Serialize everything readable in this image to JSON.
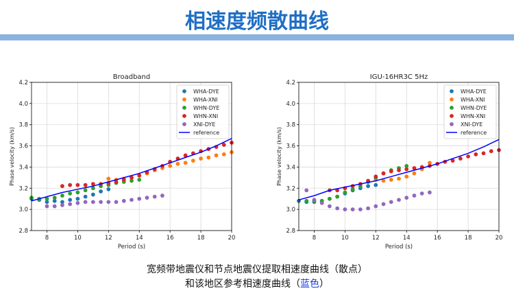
{
  "slide": {
    "title": "相速度频散曲线",
    "caption_line1": "宽频带地震仪和节点地震仪提取相速度曲线（散点）",
    "caption_line2_pre": "和该地区参考相速度曲线（",
    "caption_line2_hl": "蓝色",
    "caption_line2_post": "）"
  },
  "colors": {
    "title": "#1f6fc5",
    "banner": "#8cb3e0",
    "WHA-DYE": "#1f77b4",
    "WHA-XNI": "#ff7f0e",
    "WHN-DYE": "#2ca02c",
    "WHN-XNI": "#d62728",
    "XNI-DYE": "#9467bd",
    "reference": "#0000ff"
  },
  "chart_data": [
    {
      "type": "scatter",
      "title": "Broadband",
      "xlabel": "Period (s)",
      "ylabel": "Phase velocity (km/s)",
      "xlim": [
        7,
        20
      ],
      "ylim": [
        2.8,
        4.2
      ],
      "xticks": [
        8,
        10,
        12,
        14,
        16,
        18,
        20
      ],
      "yticks": [
        2.8,
        3.0,
        3.2,
        3.4,
        3.6,
        3.8,
        4.0,
        4.2
      ],
      "grid": true,
      "legend": "top-right",
      "series": [
        {
          "name": "WHA-DYE",
          "x": [
            7.0,
            7.5,
            8.0,
            8.5,
            9.0,
            9.5,
            10.0,
            10.5,
            11.0,
            11.5,
            12.0
          ],
          "y": [
            3.1,
            3.09,
            3.07,
            3.08,
            3.07,
            3.09,
            3.1,
            3.12,
            3.14,
            3.17,
            3.19
          ]
        },
        {
          "name": "WHA-XNI",
          "x": [
            12.0,
            12.5,
            13.0,
            13.5,
            14.0,
            14.5,
            15.0,
            15.5,
            16.0,
            16.5,
            17.0,
            17.5,
            18.0,
            18.5,
            19.0,
            19.5,
            20.0
          ],
          "y": [
            3.29,
            3.28,
            3.29,
            3.3,
            3.32,
            3.34,
            3.37,
            3.39,
            3.41,
            3.43,
            3.44,
            3.46,
            3.48,
            3.49,
            3.51,
            3.52,
            3.54
          ]
        },
        {
          "name": "WHN-DYE",
          "x": [
            7.0,
            7.5,
            8.0,
            8.5,
            9.0,
            9.5,
            10.0,
            10.5,
            11.0,
            11.5,
            12.0,
            12.5,
            13.0,
            13.5,
            14.0
          ],
          "y": [
            3.11,
            3.1,
            3.1,
            3.11,
            3.13,
            3.15,
            3.16,
            3.18,
            3.2,
            3.22,
            3.23,
            3.25,
            3.26,
            3.27,
            3.28
          ]
        },
        {
          "name": "WHN-XNI",
          "x": [
            9.0,
            9.5,
            10.0,
            10.5,
            11.0,
            11.5,
            12.0,
            12.5,
            13.0,
            13.5,
            14.0,
            14.5,
            15.0,
            15.5,
            16.0,
            16.5,
            17.0,
            17.5,
            18.0,
            18.5,
            19.0,
            19.5,
            20.0
          ],
          "y": [
            3.22,
            3.23,
            3.23,
            3.23,
            3.24,
            3.24,
            3.25,
            3.26,
            3.28,
            3.3,
            3.32,
            3.35,
            3.38,
            3.41,
            3.45,
            3.48,
            3.51,
            3.53,
            3.55,
            3.57,
            3.59,
            3.61,
            3.63
          ]
        },
        {
          "name": "XNI-DYE",
          "x": [
            8.0,
            8.5,
            9.0,
            9.5,
            10.0,
            10.5,
            11.0,
            11.5,
            12.0,
            12.5,
            13.0,
            13.5,
            14.0,
            14.5,
            15.0,
            15.5
          ],
          "y": [
            3.03,
            3.03,
            3.04,
            3.05,
            3.06,
            3.07,
            3.07,
            3.07,
            3.07,
            3.07,
            3.08,
            3.09,
            3.1,
            3.11,
            3.12,
            3.13
          ]
        }
      ],
      "reference": {
        "name": "reference",
        "x": [
          7,
          8,
          9,
          10,
          11,
          12,
          13,
          14,
          15,
          16,
          17,
          18,
          19,
          20
        ],
        "y": [
          3.08,
          3.12,
          3.16,
          3.19,
          3.22,
          3.26,
          3.3,
          3.34,
          3.39,
          3.44,
          3.49,
          3.54,
          3.6,
          3.67
        ]
      }
    },
    {
      "type": "scatter",
      "title": "IGU-16HR3C 5Hz",
      "xlabel": "Period (s)",
      "ylabel": "Phase velocity (km/s)",
      "xlim": [
        7,
        20
      ],
      "ylim": [
        2.8,
        4.2
      ],
      "xticks": [
        8,
        10,
        12,
        14,
        16,
        18,
        20
      ],
      "yticks": [
        2.8,
        3.0,
        3.2,
        3.4,
        3.6,
        3.8,
        4.0,
        4.2
      ],
      "grid": true,
      "legend": "top-right",
      "series": [
        {
          "name": "WHA-DYE",
          "x": [
            7.0,
            7.5,
            8.0,
            8.5,
            9.0,
            9.5,
            10.0,
            10.5,
            11.0,
            11.5,
            12.0
          ],
          "y": [
            3.08,
            3.07,
            3.07,
            3.08,
            3.1,
            3.12,
            3.15,
            3.18,
            3.2,
            3.22,
            3.23
          ]
        },
        {
          "name": "WHA-XNI",
          "x": [
            12.0,
            12.5,
            13.0,
            13.5,
            14.0,
            14.5,
            15.0,
            15.5
          ],
          "y": [
            3.28,
            3.27,
            3.28,
            3.29,
            3.31,
            3.34,
            3.38,
            3.44
          ]
        },
        {
          "name": "WHN-DYE",
          "x": [
            7.5,
            8.0,
            8.5,
            9.0,
            9.5,
            10.0,
            10.5,
            11.0,
            11.5,
            12.0,
            12.5,
            13.0,
            13.5,
            14.0
          ],
          "y": [
            3.08,
            3.08,
            3.08,
            3.1,
            3.12,
            3.16,
            3.19,
            3.22,
            3.26,
            3.3,
            3.34,
            3.37,
            3.39,
            3.41
          ]
        },
        {
          "name": "WHN-XNI",
          "x": [
            9.0,
            9.5,
            10.0,
            10.5,
            11.0,
            11.5,
            12.0,
            12.5,
            13.0,
            13.5,
            14.0,
            14.5,
            15.0,
            15.5,
            16.0,
            16.5,
            17.0,
            17.5,
            18.0,
            18.5,
            19.0,
            19.5,
            20.0
          ],
          "y": [
            3.18,
            3.18,
            3.2,
            3.22,
            3.24,
            3.27,
            3.31,
            3.34,
            3.36,
            3.37,
            3.38,
            3.39,
            3.4,
            3.41,
            3.43,
            3.45,
            3.46,
            3.48,
            3.5,
            3.52,
            3.53,
            3.55,
            3.56
          ]
        },
        {
          "name": "XNI-DYE",
          "x": [
            7.5,
            8.0,
            8.5,
            9.0,
            9.5,
            10.0,
            10.5,
            11.0,
            11.5,
            12.0,
            12.5,
            13.0,
            13.5,
            14.0,
            14.5,
            15.0,
            15.5
          ],
          "y": [
            3.18,
            3.09,
            3.06,
            3.03,
            3.01,
            3.0,
            3.0,
            3.0,
            3.01,
            3.03,
            3.05,
            3.07,
            3.09,
            3.11,
            3.13,
            3.15,
            3.16
          ]
        }
      ],
      "reference": {
        "name": "reference",
        "x": [
          7,
          8,
          9,
          10,
          11,
          12,
          13,
          14,
          15,
          16,
          17,
          18,
          19,
          20
        ],
        "y": [
          3.09,
          3.13,
          3.18,
          3.21,
          3.24,
          3.27,
          3.31,
          3.35,
          3.39,
          3.43,
          3.48,
          3.53,
          3.59,
          3.66
        ]
      }
    }
  ]
}
